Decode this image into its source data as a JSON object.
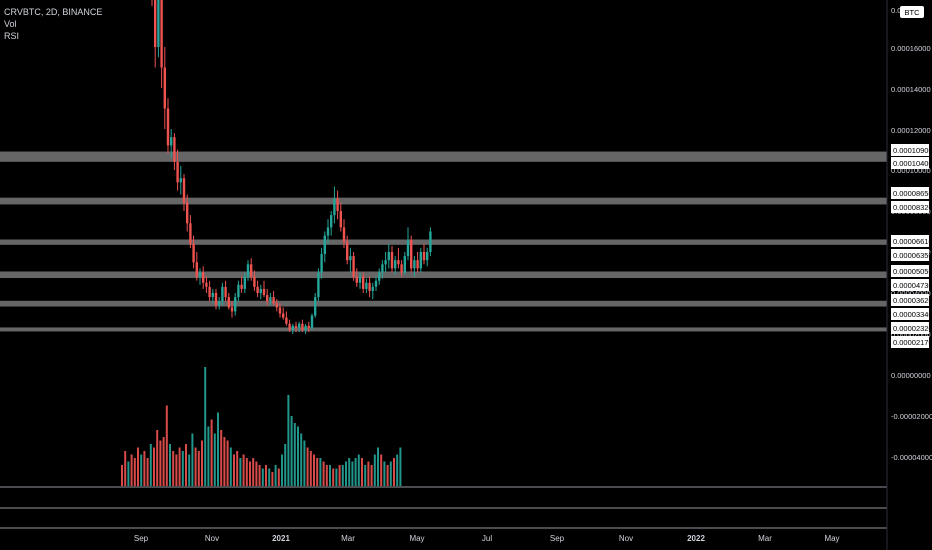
{
  "legend": {
    "symbol": "CRVBTC, 2D, BINANCE",
    "vol": "Vol",
    "rsi": "RSI"
  },
  "currency_badge": "BTC",
  "colors": {
    "background": "#000000",
    "up": "#26a69a",
    "down": "#ef5350",
    "zone": "#787878",
    "axis_text": "#d1d4dc",
    "label_bg": "#ffffff"
  },
  "chart_data": {
    "type": "candlestick",
    "symbol": "CRVBTC",
    "interval": "2D",
    "exchange": "BINANCE",
    "price_axis_ticks": [
      "0.00018000",
      "0.00016000",
      "0.00014000",
      "0.00012000",
      "0.00010000",
      "0.00008000",
      "0.00006000",
      "0.00004000",
      "0.00002000",
      "0.00000000",
      "-0.00002000",
      "-0.00004000"
    ],
    "top_partial_tick": "0.000180",
    "time_axis_ticks": [
      "Sep",
      "Nov",
      "2021",
      "Mar",
      "May",
      "Jul",
      "Sep",
      "Nov",
      "2022",
      "Mar",
      "May"
    ],
    "bold_time_ticks": [
      "2021",
      "2022"
    ],
    "level_zones": [
      {
        "upper": "0.00010900",
        "lower": "0.00010400"
      },
      {
        "upper": "0.00008650",
        "lower": "0.00008320"
      },
      {
        "upper": "0.00006610",
        "lower": "0.00006350"
      },
      {
        "upper": "0.00005050",
        "lower": "0.00004730"
      },
      {
        "upper": "0.00003620",
        "lower": "0.00003340"
      },
      {
        "upper": "0.00002320",
        "lower": "0.00002170"
      }
    ],
    "candles": [
      [
        0.0002,
        0.000215,
        0.00018,
        0.00019
      ],
      [
        0.00019,
        0.000205,
        0.00015,
        0.00016
      ],
      [
        0.00016,
        0.0002,
        0.000155,
        0.000185
      ],
      [
        0.000185,
        0.00019,
        0.00014,
        0.00015
      ],
      [
        0.00015,
        0.00016,
        0.00012,
        0.00013
      ],
      [
        0.00013,
        0.000135,
        0.000108,
        0.000112
      ],
      [
        0.000112,
        0.00012,
        0.000106,
        0.000116
      ],
      [
        0.000116,
        0.000118,
        0.0001,
        0.000104
      ],
      [
        0.000104,
        0.00011,
        9e-05,
        9.4e-05
      ],
      [
        9.4e-05,
        0.000102,
        8.8e-05,
        9.6e-05
      ],
      [
        9.6e-05,
        9.8e-05,
        8e-05,
        8.4e-05
      ],
      [
        8.4e-05,
        8.8e-05,
        7e-05,
        7.4e-05
      ],
      [
        7.4e-05,
        7.8e-05,
        6.2e-05,
        6.4e-05
      ],
      [
        6.4e-05,
        6.8e-05,
        5.2e-05,
        5.5e-05
      ],
      [
        5.5e-05,
        6e-05,
        4.6e-05,
        4.8e-05
      ],
      [
        4.8e-05,
        5.2e-05,
        4.4e-05,
        5e-05
      ],
      [
        5e-05,
        5.3e-05,
        4.2e-05,
        4.5e-05
      ],
      [
        4.5e-05,
        4.8e-05,
        4e-05,
        4.3e-05
      ],
      [
        4.3e-05,
        4.6e-05,
        3.6e-05,
        3.8e-05
      ],
      [
        3.8e-05,
        4.2e-05,
        3.5e-05,
        4e-05
      ],
      [
        4e-05,
        4.2e-05,
        3.2e-05,
        3.4e-05
      ],
      [
        3.4e-05,
        3.8e-05,
        3.2e-05,
        3.6e-05
      ],
      [
        3.6e-05,
        4.5e-05,
        3.4e-05,
        4.3e-05
      ],
      [
        4.3e-05,
        4.6e-05,
        3.6e-05,
        3.8e-05
      ],
      [
        3.8e-05,
        4e-05,
        3.2e-05,
        3.3e-05
      ],
      [
        3.3e-05,
        3.6e-05,
        2.8e-05,
        3.1e-05
      ],
      [
        3.1e-05,
        4e-05,
        2.9e-05,
        3.8e-05
      ],
      [
        3.8e-05,
        4.6e-05,
        3.6e-05,
        4.4e-05
      ],
      [
        4.4e-05,
        4.8e-05,
        4e-05,
        4.2e-05
      ],
      [
        4.2e-05,
        5e-05,
        4e-05,
        4.8e-05
      ],
      [
        4.8e-05,
        5.6e-05,
        4.6e-05,
        5.4e-05
      ],
      [
        5.4e-05,
        5.7e-05,
        4.6e-05,
        4.8e-05
      ],
      [
        4.8e-05,
        5.1e-05,
        4.1e-05,
        4.3e-05
      ],
      [
        4.3e-05,
        4.6e-05,
        3.8e-05,
        4e-05
      ],
      [
        4e-05,
        4.4e-05,
        3.7e-05,
        4.2e-05
      ],
      [
        4.2e-05,
        4.6e-05,
        3.8e-05,
        3.9e-05
      ],
      [
        3.9e-05,
        4.2e-05,
        3.4e-05,
        3.6e-05
      ],
      [
        3.6e-05,
        4e-05,
        3.4e-05,
        3.8e-05
      ],
      [
        3.8e-05,
        4.1e-05,
        3.4e-05,
        3.5e-05
      ],
      [
        3.5e-05,
        3.7e-05,
        3.1e-05,
        3.3e-05
      ],
      [
        3.3e-05,
        3.5e-05,
        2.8e-05,
        3e-05
      ],
      [
        3e-05,
        3.3e-05,
        2.7e-05,
        2.8e-05
      ],
      [
        2.8e-05,
        3.1e-05,
        2.4e-05,
        2.5e-05
      ],
      [
        2.5e-05,
        2.7e-05,
        2.1e-05,
        2.2e-05
      ],
      [
        2.2e-05,
        2.5e-05,
        2e-05,
        2.4e-05
      ],
      [
        2.4e-05,
        2.6e-05,
        2.1e-05,
        2.3e-05
      ],
      [
        2.3e-05,
        2.6e-05,
        2.1e-05,
        2.5e-05
      ],
      [
        2.5e-05,
        2.7e-05,
        2.1e-05,
        2.2e-05
      ],
      [
        2.2e-05,
        2.5e-05,
        2e-05,
        2.4e-05
      ],
      [
        2.4e-05,
        2.6e-05,
        2.1e-05,
        2.3e-05
      ],
      [
        2.3e-05,
        3e-05,
        2.2e-05,
        2.9e-05
      ],
      [
        2.9e-05,
        4e-05,
        2.8e-05,
        3.8e-05
      ],
      [
        3.8e-05,
        5.2e-05,
        3.6e-05,
        5e-05
      ],
      [
        5e-05,
        6.2e-05,
        4.7e-05,
        5.9e-05
      ],
      [
        5.9e-05,
        7e-05,
        5.5e-05,
        6.8e-05
      ],
      [
        6.8e-05,
        7.6e-05,
        6.4e-05,
        7.2e-05
      ],
      [
        7.2e-05,
        8e-05,
        6.8e-05,
        7.8e-05
      ],
      [
        7.8e-05,
        9.2e-05,
        7.4e-05,
        8.6e-05
      ],
      [
        8.6e-05,
        9e-05,
        7.6e-05,
        8e-05
      ],
      [
        8e-05,
        8.4e-05,
        7e-05,
        7.2e-05
      ],
      [
        7.2e-05,
        7.6e-05,
        6.2e-05,
        6.5e-05
      ],
      [
        6.5e-05,
        6.8e-05,
        5.4e-05,
        5.6e-05
      ],
      [
        5.6e-05,
        6.2e-05,
        5e-05,
        5.8e-05
      ],
      [
        5.8e-05,
        6e-05,
        4.6e-05,
        4.8e-05
      ],
      [
        4.8e-05,
        5.2e-05,
        4.3e-05,
        4.5e-05
      ],
      [
        4.5e-05,
        5e-05,
        4.2e-05,
        4.8e-05
      ],
      [
        4.8e-05,
        5e-05,
        4e-05,
        4.2e-05
      ],
      [
        4.2e-05,
        4.7e-05,
        4e-05,
        4.5e-05
      ],
      [
        4.5e-05,
        4.8e-05,
        3.8e-05,
        4.1e-05
      ],
      [
        4.1e-05,
        4.5e-05,
        3.7e-05,
        4.3e-05
      ],
      [
        4.3e-05,
        4.8e-05,
        4.1e-05,
        4.6e-05
      ],
      [
        4.6e-05,
        5.2e-05,
        4.4e-05,
        5e-05
      ],
      [
        5e-05,
        5.6e-05,
        4.7e-05,
        5.4e-05
      ],
      [
        5.4e-05,
        6e-05,
        5e-05,
        5.6e-05
      ],
      [
        5.6e-05,
        6.4e-05,
        5.2e-05,
        6e-05
      ],
      [
        6e-05,
        6.3e-05,
        5e-05,
        5.2e-05
      ],
      [
        5.2e-05,
        5.8e-05,
        4.9e-05,
        5.6e-05
      ],
      [
        5.6e-05,
        6.2e-05,
        5.2e-05,
        5.4e-05
      ],
      [
        5.4e-05,
        5.6e-05,
        4.8e-05,
        5e-05
      ],
      [
        5e-05,
        6e-05,
        4.9e-05,
        5.8e-05
      ],
      [
        5.8e-05,
        7.2e-05,
        5.6e-05,
        6.6e-05
      ],
      [
        6.6e-05,
        6.8e-05,
        5e-05,
        5.2e-05
      ],
      [
        5.2e-05,
        5.8e-05,
        4.8e-05,
        5.6e-05
      ],
      [
        5.6e-05,
        6e-05,
        5e-05,
        5.2e-05
      ],
      [
        5.2e-05,
        6.2e-05,
        5e-05,
        6e-05
      ],
      [
        6e-05,
        6.4e-05,
        5.4e-05,
        5.6e-05
      ],
      [
        5.6e-05,
        6.2e-05,
        5.3e-05,
        6e-05
      ],
      [
        6e-05,
        7.2e-05,
        5.8e-05,
        7e-05
      ]
    ],
    "volume": [
      12,
      20,
      14,
      18,
      16,
      22,
      18,
      20,
      16,
      24,
      22,
      32,
      26,
      28,
      46,
      24,
      20,
      18,
      22,
      20,
      24,
      18,
      30,
      22,
      20,
      26,
      68,
      34,
      38,
      30,
      42,
      32,
      28,
      26,
      22,
      18,
      20,
      16,
      18,
      16,
      14,
      16,
      14,
      12,
      10,
      12,
      10,
      8,
      12,
      10,
      18,
      24,
      52,
      40,
      36,
      34,
      30,
      26,
      22,
      20,
      18,
      16,
      16,
      14,
      12,
      12,
      10,
      10,
      12,
      12,
      14,
      16,
      14,
      16,
      18,
      16,
      12,
      14,
      12,
      18,
      22,
      18,
      14,
      12,
      14,
      16,
      18,
      22
    ]
  }
}
